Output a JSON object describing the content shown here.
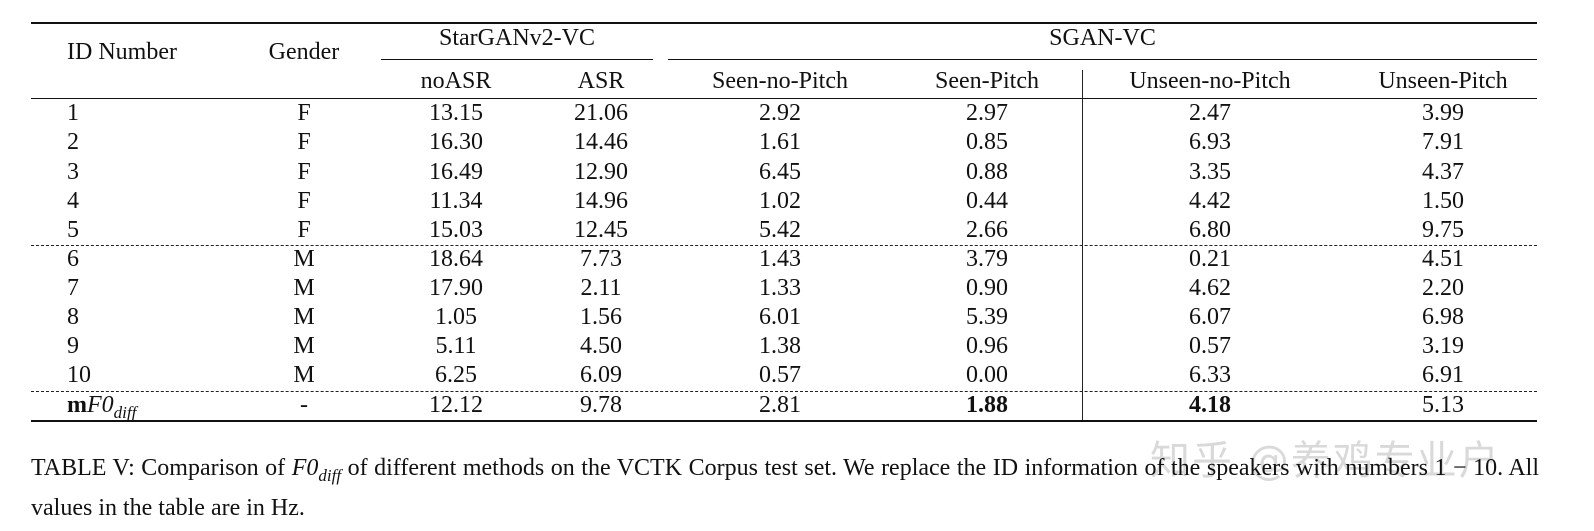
{
  "table": {
    "header": {
      "id_number": "ID Number",
      "gender": "Gender",
      "group_stargan": "StarGANv2-VC",
      "group_sgan": "SGAN-VC",
      "cols": [
        "noASR",
        "ASR",
        "Seen-no-Pitch",
        "Seen-Pitch",
        "Unseen-no-Pitch",
        "Unseen-Pitch"
      ]
    },
    "rows": [
      {
        "id": "1",
        "gender": "F",
        "v": [
          "13.15",
          "21.06",
          "2.92",
          "2.97",
          "2.47",
          "3.99"
        ]
      },
      {
        "id": "2",
        "gender": "F",
        "v": [
          "16.30",
          "14.46",
          "1.61",
          "0.85",
          "6.93",
          "7.91"
        ]
      },
      {
        "id": "3",
        "gender": "F",
        "v": [
          "16.49",
          "12.90",
          "6.45",
          "0.88",
          "3.35",
          "4.37"
        ]
      },
      {
        "id": "4",
        "gender": "F",
        "v": [
          "11.34",
          "14.96",
          "1.02",
          "0.44",
          "4.42",
          "1.50"
        ]
      },
      {
        "id": "5",
        "gender": "F",
        "v": [
          "15.03",
          "12.45",
          "5.42",
          "2.66",
          "6.80",
          "9.75"
        ]
      },
      {
        "id": "6",
        "gender": "M",
        "v": [
          "18.64",
          "7.73",
          "1.43",
          "3.79",
          "0.21",
          "4.51"
        ]
      },
      {
        "id": "7",
        "gender": "M",
        "v": [
          "17.90",
          "2.11",
          "1.33",
          "0.90",
          "4.62",
          "2.20"
        ]
      },
      {
        "id": "8",
        "gender": "M",
        "v": [
          "1.05",
          "1.56",
          "6.01",
          "5.39",
          "6.07",
          "6.98"
        ]
      },
      {
        "id": "9",
        "gender": "M",
        "v": [
          "5.11",
          "4.50",
          "1.38",
          "0.96",
          "0.57",
          "3.19"
        ]
      },
      {
        "id": "10",
        "gender": "M",
        "v": [
          "6.25",
          "6.09",
          "0.57",
          "0.00",
          "6.33",
          "6.91"
        ]
      }
    ],
    "mean_row": {
      "label_prefix": "m",
      "label_math": "F0",
      "label_sub": "diff",
      "gender": "-",
      "v": [
        "12.12",
        "9.78",
        "2.81",
        "1.88",
        "4.18",
        "5.13"
      ]
    }
  },
  "caption": {
    "part1": "TABLE V: Comparison of ",
    "math": "F0",
    "math_sub": "diff",
    "part2": " of different methods on the VCTK Corpus test set. We replace the ID information of the speakers with numbers ",
    "range": "1 − 10",
    "part3": ". All values in the table are in Hz."
  },
  "watermark": "知乎 @养鸡专业户"
}
